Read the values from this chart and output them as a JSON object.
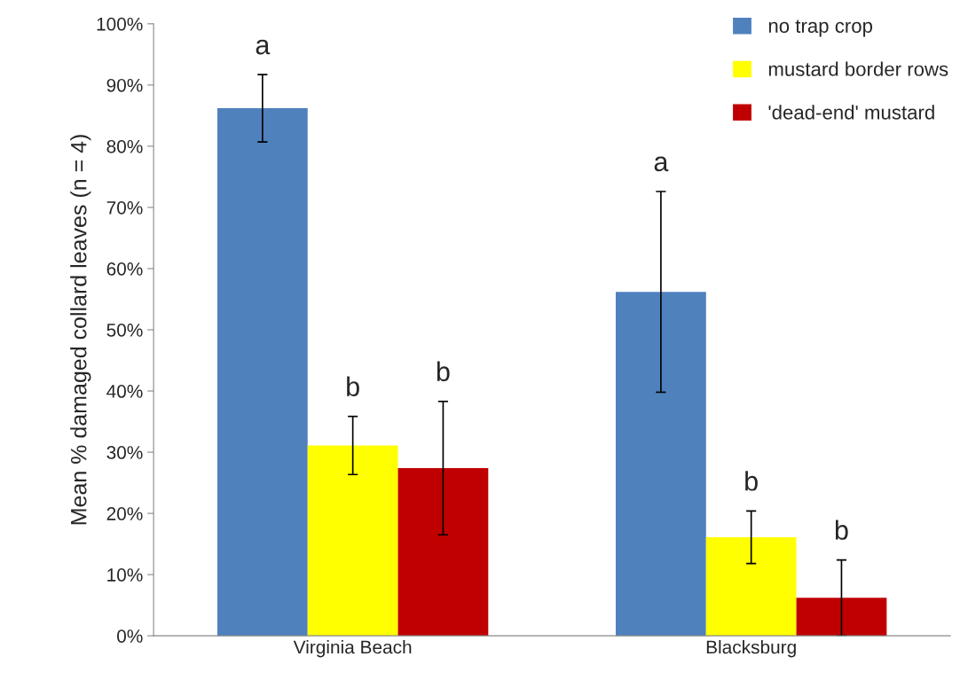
{
  "chart_data": {
    "type": "bar",
    "ylabel": "Mean % damaged collard leaves (n = 4)",
    "categories": [
      "Virginia Beach",
      "Blacksburg"
    ],
    "series": [
      {
        "name": "no trap crop",
        "color": "#4f81bd",
        "values": [
          86.2,
          56.2
        ],
        "errors": [
          5.5,
          16.4
        ]
      },
      {
        "name": "mustard border rows",
        "color": "#ffff00",
        "values": [
          31.1,
          16.1
        ],
        "errors": [
          4.75,
          4.3
        ]
      },
      {
        "name": "'dead-end' mustard",
        "color": "#c00000",
        "values": [
          27.4,
          6.2
        ],
        "errors": [
          10.9,
          6.2
        ]
      }
    ],
    "annotations": [
      "a",
      "b",
      "b",
      "a",
      "b",
      "b"
    ],
    "ylim": [
      0,
      100
    ],
    "yticks": [
      {
        "value": 0,
        "label": "0%"
      },
      {
        "value": 10,
        "label": "10%"
      },
      {
        "value": 20,
        "label": "20%"
      },
      {
        "value": 30,
        "label": "30%"
      },
      {
        "value": 40,
        "label": "40%"
      },
      {
        "value": 50,
        "label": "50%"
      },
      {
        "value": 60,
        "label": "60%"
      },
      {
        "value": 70,
        "label": "70%"
      },
      {
        "value": 80,
        "label": "80%"
      },
      {
        "value": 90,
        "label": "90%"
      },
      {
        "value": 100,
        "label": "100%"
      }
    ],
    "legend": "top right",
    "grid": false
  }
}
